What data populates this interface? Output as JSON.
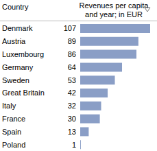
{
  "chart_data": {
    "type": "bar",
    "orientation": "horizontal",
    "ylabel": "Country",
    "xlabel": "Revenues per capita and year; in EUR",
    "categories": [
      "Denmark",
      "Austria",
      "Luxembourg",
      "Germany",
      "Sweden",
      "Great Britain",
      "Italy",
      "France",
      "Spain",
      "Poland"
    ],
    "values": [
      107,
      89,
      86,
      64,
      53,
      42,
      32,
      30,
      13,
      1
    ],
    "color": "#8a9ec6",
    "data_labels": true,
    "tick_labels": "y",
    "grid": false
  }
}
